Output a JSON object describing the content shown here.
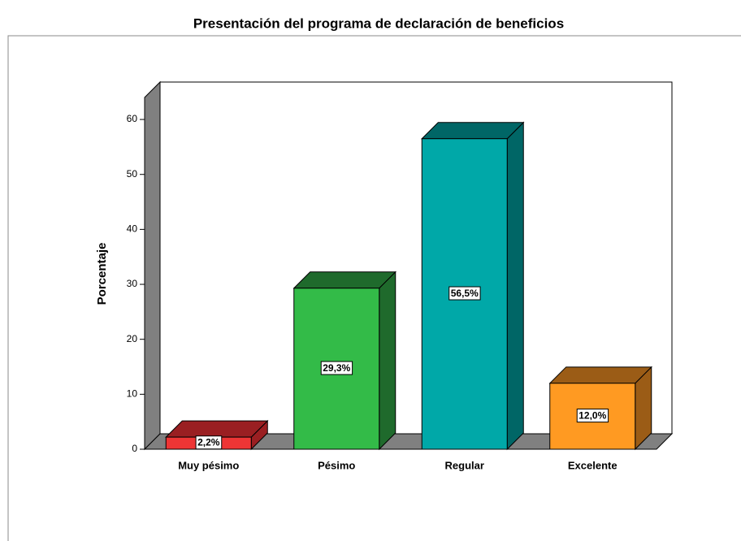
{
  "chart_data": {
    "type": "bar3d",
    "title": "Presentación del programa de declaración de beneficios",
    "y_label": "Porcentaje",
    "categories": [
      "Muy pésimo",
      "Pésimo",
      "Regular",
      "Excelente"
    ],
    "values": [
      2.2,
      29.3,
      56.5,
      12.0
    ],
    "value_labels": [
      "2,2%",
      "29,3%",
      "56,5%",
      "12,0%"
    ],
    "colors": [
      "#ee3535",
      "#33bb48",
      "#00a8a8",
      "#ff9a22"
    ],
    "side_colors": [
      "#9a1f22",
      "#1f6a2c",
      "#006666",
      "#9b5c16"
    ],
    "ylim": [
      0,
      64
    ],
    "yticks": [
      0,
      10,
      20,
      30,
      40,
      50,
      60
    ]
  }
}
